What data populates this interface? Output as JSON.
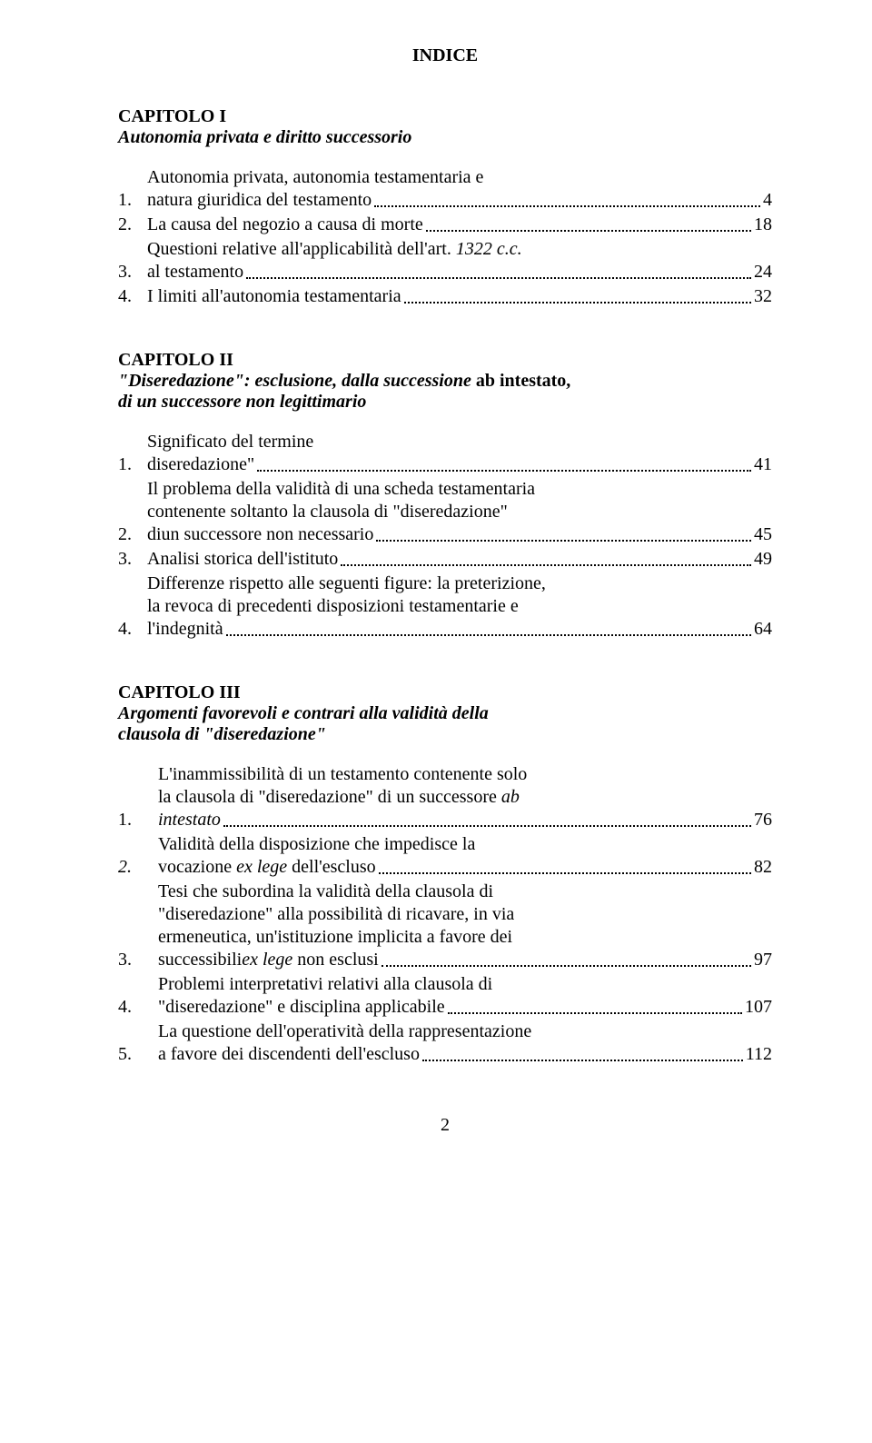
{
  "page": {
    "title": "INDICE",
    "number": "2",
    "background_color": "#ffffff",
    "text_color": "#000000",
    "font_family": "Bookman Old Style",
    "base_fontsize_pt": 15
  },
  "chapters": [
    {
      "heading": "CAPITOLO I",
      "subtitle": "Autonomia privata e diritto successorio",
      "entries": [
        {
          "num": "1.",
          "lines": [
            "Autonomia privata, autonomia testamentaria e"
          ],
          "last": "natura giuridica del testamento",
          "page": " 4",
          "page_prefix": ""
        },
        {
          "num": "2.",
          "lines": [],
          "last": "La causa del negozio a causa di morte",
          "page": "18",
          "page_prefix": ""
        },
        {
          "num": "3.",
          "lines": [
            "Questioni relative all'applicabilità dell'art. "
          ],
          "last_prefix_italic": "1322 c.c.",
          "last": " al testamento",
          "page": "24",
          "page_prefix": ""
        },
        {
          "num": "4.",
          "lines": [],
          "last": "I limiti all'autonomia testamentaria",
          "page": "32",
          "page_prefix": ""
        }
      ]
    },
    {
      "heading": "CAPITOLO II",
      "subtitle_parts": [
        {
          "text": "\"Diseredazione\": esclusione, dalla successione ",
          "italic": true
        },
        {
          "text": "ab intestato,",
          "italic": false,
          "newline": true
        },
        {
          "text": "di un successore non legittimario",
          "italic": true
        }
      ],
      "entries": [
        {
          "num": "1.",
          "lines": [
            "Significato del termine"
          ],
          "last": "diseredazione\"",
          "page": "41",
          "page_prefix": ""
        },
        {
          "num": "2.",
          "lines": [
            "Il problema della validità di una scheda testamentaria",
            "contenente soltanto la clausola di \"diseredazione\""
          ],
          "last": "diun successore non necessario",
          "page": "45",
          "page_prefix": ""
        },
        {
          "num": "3.",
          "lines": [],
          "last": "Analisi storica dell'istituto",
          "page": "49",
          "page_prefix": ""
        },
        {
          "num": "4.",
          "lines": [
            "Differenze rispetto alle seguenti figure: la preterizione,",
            "la revoca di precedenti disposizioni testamentarie e"
          ],
          "last": "l'indegnità",
          "page": "64",
          "page_prefix": ""
        }
      ]
    },
    {
      "heading": "CAPITOLO III",
      "subtitle_parts": [
        {
          "text": "Argomenti favorevoli e contrari alla validità della",
          "italic": true,
          "newline": true
        },
        {
          "text": "clausola di \"diseredazione\"",
          "italic": true
        }
      ],
      "num_wide": true,
      "entries": [
        {
          "num": "1.",
          "lines": [
            "L'inammissibilità di un testamento contenente solo",
            "la clausola di \"diseredazione\" di un successore "
          ],
          "last_italic": "intestato",
          "last_prefix_italic_first": "ab",
          "page": " 76",
          "page_prefix": ""
        },
        {
          "num": "2.",
          "num_italic": true,
          "lines": [
            "Validità della disposizione che impedisce la"
          ],
          "last_prefix": "vocazione ",
          "last_italic_mid": "ex lege",
          "last_suffix": " dell'escluso",
          "page": "82",
          "page_prefix": ""
        },
        {
          "num": "3.",
          "lines": [
            "Tesi che subordina la validità della clausola di",
            "\"diseredazione\" alla possibilità di ricavare, in via",
            "ermeneutica, un'istituzione implicita a favore dei"
          ],
          "last_prefix": "successibili",
          "last_italic_mid": "ex lege",
          "last_suffix": " non esclusi",
          "page": "97",
          "page_prefix": ""
        },
        {
          "num": "4.",
          "lines": [
            "Problemi interpretativi relativi alla clausola di"
          ],
          "last": "\"diseredazione\" e disciplina applicabile",
          "page": "107",
          "page_prefix": ""
        },
        {
          "num": "5.",
          "lines": [
            "La questione dell'operatività della rappresentazione"
          ],
          "last": "a favore dei discendenti dell'escluso",
          "page": "112",
          "page_prefix": ""
        }
      ]
    }
  ]
}
